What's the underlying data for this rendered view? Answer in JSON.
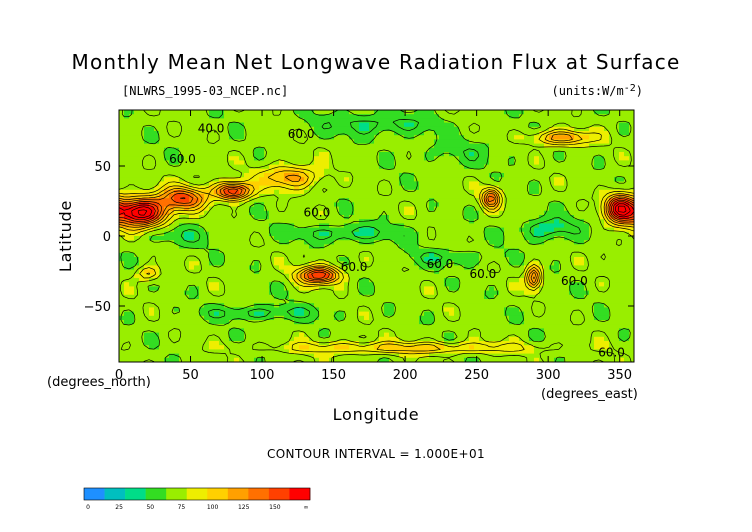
{
  "title": "Monthly Mean Net Longwave Radiation Flux at Surface",
  "file_label": "[NLWRS_1995-03_NCEP.nc]",
  "units_label": "(units:W/m^-2)",
  "xaxis": {
    "label": "Longitude",
    "unit_note": "(degrees_east)",
    "ticks": [
      0,
      50,
      100,
      150,
      200,
      250,
      300,
      350
    ],
    "tick_labels": [
      "0",
      "50",
      "100",
      "150",
      "200",
      "250",
      "300",
      "350"
    ]
  },
  "yaxis": {
    "label": "Latitude",
    "unit_note": "(degrees_north)",
    "ticks": [
      50,
      0,
      -50
    ],
    "tick_labels": [
      "50",
      "0",
      "−50"
    ]
  },
  "contour_interval": "CONTOUR INTERVAL = 1.000E+01",
  "contour_labels": [
    "40.0",
    "60.0",
    "60.0",
    "60.0",
    "60.0",
    "60.0",
    "60.0",
    "60.0",
    "60.0"
  ],
  "colorbar": {
    "labels": [
      "0",
      "25",
      "50",
      "75",
      "100",
      "125",
      "150",
      "∞"
    ],
    "colors": [
      "#1e90ff",
      "#00bfbf",
      "#00dd88",
      "#33dd22",
      "#99ee00",
      "#eeee00",
      "#ffd000",
      "#ffa000",
      "#ff7000",
      "#ff4000",
      "#ff0000"
    ]
  },
  "chart_data": {
    "type": "heatmap",
    "title": "Monthly Mean Net Longwave Radiation Flux at Surface",
    "xlabel": "Longitude",
    "ylabel": "Latitude",
    "units": "W/m^-2",
    "xlim": [
      0,
      360
    ],
    "ylim": [
      -90,
      90
    ],
    "contour_interval": 10,
    "colorbar_bins": [
      0,
      12.5,
      25,
      37.5,
      50,
      62.5,
      75,
      87.5,
      100,
      112.5,
      125,
      137.5,
      150
    ],
    "background_value": 55,
    "features": [
      {
        "lon": 15,
        "lat": 17,
        "rx": 18,
        "ry": 10,
        "amp": 100
      },
      {
        "lon": 45,
        "lat": 27,
        "rx": 16,
        "ry": 8,
        "amp": 60
      },
      {
        "lon": 80,
        "lat": 32,
        "rx": 12,
        "ry": 6,
        "amp": 80
      },
      {
        "lon": 120,
        "lat": 42,
        "rx": 20,
        "ry": 8,
        "amp": 40
      },
      {
        "lon": 140,
        "lat": -28,
        "rx": 14,
        "ry": 6,
        "amp": 75
      },
      {
        "lon": 260,
        "lat": 27,
        "rx": 6,
        "ry": 7,
        "amp": 60
      },
      {
        "lon": 290,
        "lat": -30,
        "rx": 5,
        "ry": 8,
        "amp": 60
      },
      {
        "lon": 350,
        "lat": 20,
        "rx": 10,
        "ry": 10,
        "amp": 80
      },
      {
        "lon": 310,
        "lat": 70,
        "rx": 20,
        "ry": 5,
        "amp": 45
      },
      {
        "lon": 20,
        "lat": -27,
        "rx": 8,
        "ry": 5,
        "amp": 30
      },
      {
        "lon": 200,
        "lat": -80,
        "rx": 90,
        "ry": 4,
        "amp": 30
      },
      {
        "lon": 300,
        "lat": 5,
        "rx": 20,
        "ry": 8,
        "amp": -25
      },
      {
        "lon": 160,
        "lat": 2,
        "rx": 40,
        "ry": 6,
        "amp": -20
      },
      {
        "lon": 230,
        "lat": -15,
        "rx": 30,
        "ry": 6,
        "amp": -15
      },
      {
        "lon": 100,
        "lat": -55,
        "rx": 40,
        "ry": 5,
        "amp": -20
      },
      {
        "lon": 40,
        "lat": 0,
        "rx": 20,
        "ry": 8,
        "amp": -15
      },
      {
        "lon": 240,
        "lat": 60,
        "rx": 30,
        "ry": 10,
        "amp": -10
      },
      {
        "lon": 180,
        "lat": 80,
        "rx": 40,
        "ry": 8,
        "amp": -20
      }
    ]
  }
}
